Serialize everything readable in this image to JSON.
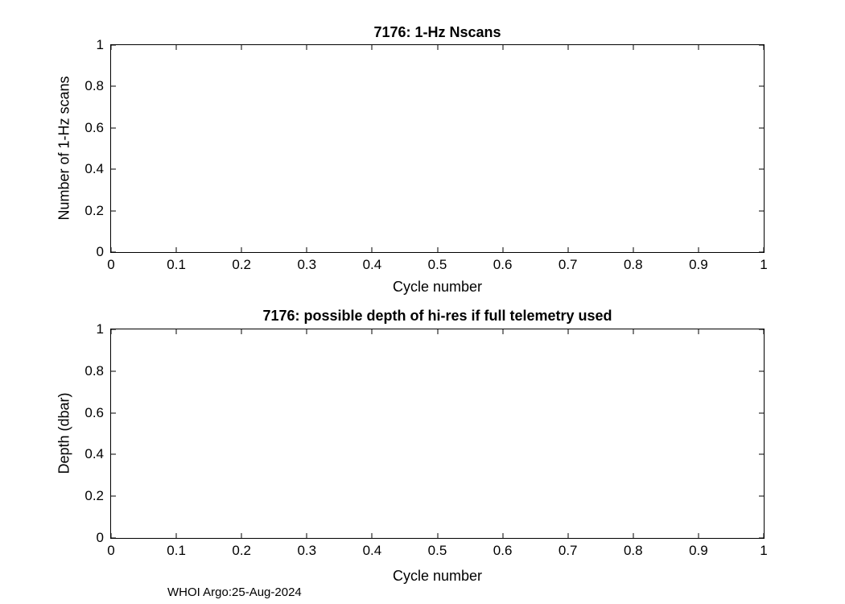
{
  "figure": {
    "footer": "WHOI Argo:25-Aug-2024"
  },
  "chart_data": [
    {
      "type": "line",
      "title": "7176: 1-Hz Nscans",
      "xlabel": "Cycle number",
      "ylabel": "Number of 1-Hz scans",
      "xlim": [
        0,
        1
      ],
      "ylim": [
        0,
        1
      ],
      "xticks": [
        0,
        0.1,
        0.2,
        0.3,
        0.4,
        0.5,
        0.6,
        0.7,
        0.8,
        0.9,
        1
      ],
      "yticks": [
        0,
        0.2,
        0.4,
        0.6,
        0.8,
        1
      ],
      "grid": false,
      "series": []
    },
    {
      "type": "line",
      "title": "7176: possible depth of hi-res if full telemetry used",
      "xlabel": "Cycle number",
      "ylabel": "Depth (dbar)",
      "xlim": [
        0,
        1
      ],
      "ylim": [
        0,
        1
      ],
      "xticks": [
        0,
        0.1,
        0.2,
        0.3,
        0.4,
        0.5,
        0.6,
        0.7,
        0.8,
        0.9,
        1
      ],
      "yticks": [
        0,
        0.2,
        0.4,
        0.6,
        0.8,
        1
      ],
      "grid": false,
      "series": []
    }
  ]
}
